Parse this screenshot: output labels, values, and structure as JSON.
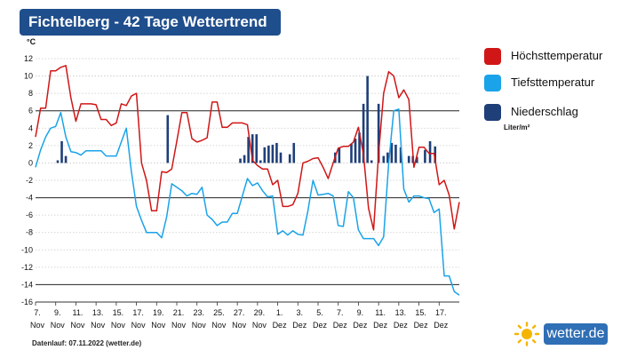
{
  "header": {
    "title": "Fichtelberg - 42 Tage Wettertrend"
  },
  "legend": {
    "items": [
      {
        "label": "Höchsttemperatur",
        "color": "#d01616"
      },
      {
        "label": "Tiefsttemperatur",
        "color": "#1aa3e8"
      },
      {
        "label": "Niederschlag",
        "color": "#1f3f78"
      }
    ],
    "precip_unit": "Liter/m²"
  },
  "footer": {
    "text": "Datenlauf: 07.11.2022 (wetter.de)"
  },
  "logo": {
    "text": "wetter.de",
    "icon": "sun-icon"
  },
  "chart_data": {
    "type": "line",
    "ylabel": "°C",
    "ylim": [
      -16,
      12
    ],
    "yticks": [
      12,
      10,
      8,
      6,
      4,
      2,
      0,
      -2,
      -4,
      -6,
      -8,
      -10,
      -12,
      -14,
      -16
    ],
    "reference_lines": [
      6,
      -4,
      -14
    ],
    "x_range_days": [
      0,
      42
    ],
    "x_tick_labels": [
      [
        "7.",
        "Nov"
      ],
      [
        "9.",
        "Nov"
      ],
      [
        "11.",
        "Nov"
      ],
      [
        "13.",
        "Nov"
      ],
      [
        "15.",
        "Nov"
      ],
      [
        "17.",
        "Nov"
      ],
      [
        "19.",
        "Nov"
      ],
      [
        "21.",
        "Nov"
      ],
      [
        "23.",
        "Nov"
      ],
      [
        "25.",
        "Nov"
      ],
      [
        "27.",
        "Nov"
      ],
      [
        "29.",
        "Nov"
      ],
      [
        "1.",
        "Dez"
      ],
      [
        "3.",
        "Dez"
      ],
      [
        "5.",
        "Dez"
      ],
      [
        "7.",
        "Dez"
      ],
      [
        "9.",
        "Dez"
      ],
      [
        "11.",
        "Dez"
      ],
      [
        "13.",
        "Dez"
      ],
      [
        "15.",
        "Dez"
      ],
      [
        "17.",
        "Dez"
      ]
    ],
    "series": [
      {
        "name": "Höchsttemperatur",
        "color": "#d01616",
        "points": [
          [
            0,
            3
          ],
          [
            0.5,
            6.3
          ],
          [
            1,
            6.3
          ],
          [
            1.5,
            10.6
          ],
          [
            2,
            10.6
          ],
          [
            2.5,
            11
          ],
          [
            3,
            11.2
          ],
          [
            3.5,
            7.5
          ],
          [
            4,
            4.8
          ],
          [
            4.5,
            6.8
          ],
          [
            5,
            6.8
          ],
          [
            5.5,
            6.8
          ],
          [
            6,
            6.7
          ],
          [
            6.5,
            5
          ],
          [
            7,
            5
          ],
          [
            7.5,
            4.3
          ],
          [
            8,
            4.6
          ],
          [
            8.5,
            6.8
          ],
          [
            9,
            6.6
          ],
          [
            9.5,
            7.7
          ],
          [
            10,
            8
          ],
          [
            10.5,
            0
          ],
          [
            11,
            -2
          ],
          [
            11.5,
            -5.5
          ],
          [
            12,
            -5.5
          ],
          [
            12.5,
            -1
          ],
          [
            13,
            -1.1
          ],
          [
            13.5,
            -0.7
          ],
          [
            14,
            2.5
          ],
          [
            14.5,
            5.8
          ],
          [
            15,
            5.8
          ],
          [
            15.5,
            2.8
          ],
          [
            16,
            2.4
          ],
          [
            16.5,
            2.6
          ],
          [
            17,
            2.9
          ],
          [
            17.5,
            7
          ],
          [
            18,
            7
          ],
          [
            18.5,
            4.1
          ],
          [
            19,
            4.1
          ],
          [
            19.5,
            4.6
          ],
          [
            20,
            4.6
          ],
          [
            20.5,
            4.6
          ],
          [
            21,
            4.4
          ],
          [
            21.5,
            0.3
          ],
          [
            22,
            -0.3
          ],
          [
            22.5,
            -0.7
          ],
          [
            23,
            -0.7
          ],
          [
            23.5,
            -2.5
          ],
          [
            24,
            -2
          ],
          [
            24.5,
            -5
          ],
          [
            25,
            -5
          ],
          [
            25.5,
            -4.8
          ],
          [
            26,
            -3.5
          ],
          [
            26.5,
            0
          ],
          [
            27,
            0.2
          ],
          [
            27.5,
            0.5
          ],
          [
            28,
            0.6
          ],
          [
            28.5,
            -0.5
          ],
          [
            29,
            -1.8
          ],
          [
            29.5,
            0
          ],
          [
            30,
            1.7
          ],
          [
            30.5,
            1.9
          ],
          [
            31,
            1.9
          ],
          [
            31.5,
            2.4
          ],
          [
            32,
            4.1
          ],
          [
            32.5,
            1
          ],
          [
            33,
            -5.2
          ],
          [
            33.5,
            -7.7
          ],
          [
            34,
            1
          ],
          [
            34.5,
            8
          ],
          [
            35,
            10.5
          ],
          [
            35.5,
            10
          ],
          [
            36,
            7.5
          ],
          [
            36.5,
            8.4
          ],
          [
            37,
            7.3
          ],
          [
            37.5,
            -0.5
          ],
          [
            38,
            1.8
          ],
          [
            38.5,
            1.8
          ],
          [
            39,
            1.1
          ],
          [
            39.5,
            1.1
          ],
          [
            40,
            -2.5
          ],
          [
            40.5,
            -2
          ],
          [
            41,
            -3.7
          ],
          [
            41.5,
            -7.6
          ],
          [
            42,
            -4.5
          ]
        ]
      },
      {
        "name": "Tiefsttemperatur",
        "color": "#1aa3e8",
        "points": [
          [
            0,
            -0.5
          ],
          [
            0.5,
            1.5
          ],
          [
            1,
            3
          ],
          [
            1.5,
            4
          ],
          [
            2,
            4.2
          ],
          [
            2.5,
            5.8
          ],
          [
            3,
            3
          ],
          [
            3.5,
            1.3
          ],
          [
            4,
            1.2
          ],
          [
            4.5,
            0.9
          ],
          [
            5,
            1.4
          ],
          [
            5.5,
            1.4
          ],
          [
            6,
            1.4
          ],
          [
            6.5,
            1.4
          ],
          [
            7,
            0.8
          ],
          [
            7.5,
            0.8
          ],
          [
            8,
            0.8
          ],
          [
            8.5,
            2.4
          ],
          [
            9,
            4
          ],
          [
            9.5,
            -1
          ],
          [
            10,
            -5
          ],
          [
            10.5,
            -6.6
          ],
          [
            11,
            -8
          ],
          [
            11.5,
            -8
          ],
          [
            12,
            -8
          ],
          [
            12.5,
            -8.6
          ],
          [
            13,
            -6.2
          ],
          [
            13.5,
            -2.4
          ],
          [
            14,
            -2.8
          ],
          [
            14.5,
            -3.2
          ],
          [
            15,
            -3.8
          ],
          [
            15.5,
            -3.5
          ],
          [
            16,
            -3.6
          ],
          [
            16.5,
            -2.8
          ],
          [
            17,
            -6
          ],
          [
            17.5,
            -6.5
          ],
          [
            18,
            -7.2
          ],
          [
            18.5,
            -6.8
          ],
          [
            19,
            -6.8
          ],
          [
            19.5,
            -5.8
          ],
          [
            20,
            -5.8
          ],
          [
            20.5,
            -3.8
          ],
          [
            21,
            -1.8
          ],
          [
            21.5,
            -2.6
          ],
          [
            22,
            -2.3
          ],
          [
            22.5,
            -3.2
          ],
          [
            23,
            -3.9
          ],
          [
            23.5,
            -3.8
          ],
          [
            24,
            -8.2
          ],
          [
            24.5,
            -7.8
          ],
          [
            25,
            -8.3
          ],
          [
            25.5,
            -7.8
          ],
          [
            26,
            -8.2
          ],
          [
            26.5,
            -8.3
          ],
          [
            27,
            -5.5
          ],
          [
            27.5,
            -2
          ],
          [
            28,
            -3.7
          ],
          [
            28.5,
            -3.6
          ],
          [
            29,
            -3.5
          ],
          [
            29.5,
            -3.8
          ],
          [
            30,
            -7.2
          ],
          [
            30.5,
            -7.3
          ],
          [
            31,
            -3.3
          ],
          [
            31.5,
            -4
          ],
          [
            32,
            -7.7
          ],
          [
            32.5,
            -8.7
          ],
          [
            33,
            -8.7
          ],
          [
            33.5,
            -8.7
          ],
          [
            34,
            -9.5
          ],
          [
            34.5,
            -8.5
          ],
          [
            35,
            0
          ],
          [
            35.5,
            6
          ],
          [
            36,
            6.2
          ],
          [
            36.5,
            -3
          ],
          [
            37,
            -4.5
          ],
          [
            37.5,
            -3.8
          ],
          [
            38,
            -3.8
          ],
          [
            38.5,
            -4
          ],
          [
            39,
            -4.1
          ],
          [
            39.5,
            -5.7
          ],
          [
            40,
            -5.3
          ],
          [
            40.5,
            -13
          ],
          [
            41,
            -13
          ],
          [
            41.5,
            -14.8
          ],
          [
            42,
            -15.2
          ]
        ]
      },
      {
        "name": "Niederschlag",
        "color": "#1f3f78",
        "type": "bar",
        "bars": [
          [
            2.2,
            0.3
          ],
          [
            2.6,
            2.5
          ],
          [
            3.0,
            0.8
          ],
          [
            13.1,
            5.5
          ],
          [
            20.3,
            0.5
          ],
          [
            20.7,
            0.9
          ],
          [
            21.1,
            3
          ],
          [
            21.5,
            3.3
          ],
          [
            21.9,
            3.3
          ],
          [
            22.3,
            0.3
          ],
          [
            22.7,
            1.8
          ],
          [
            23.1,
            2
          ],
          [
            23.5,
            2.1
          ],
          [
            23.9,
            2.3
          ],
          [
            24.3,
            1.2
          ],
          [
            25.2,
            1
          ],
          [
            25.6,
            2.3
          ],
          [
            29.7,
            1.2
          ],
          [
            30.1,
            1.7
          ],
          [
            31.3,
            2.2
          ],
          [
            31.7,
            2.8
          ],
          [
            32.1,
            3.5
          ],
          [
            32.5,
            6.8
          ],
          [
            32.9,
            10
          ],
          [
            33.3,
            0.3
          ],
          [
            34.0,
            6.8
          ],
          [
            34.5,
            0.8
          ],
          [
            34.9,
            1.2
          ],
          [
            35.3,
            2.3
          ],
          [
            35.7,
            2.1
          ],
          [
            36.2,
            1.8
          ],
          [
            37.0,
            0.8
          ],
          [
            37.4,
            0.8
          ],
          [
            37.8,
            0.7
          ],
          [
            38.6,
            1.5
          ],
          [
            39.1,
            2.5
          ],
          [
            39.6,
            1.9
          ]
        ]
      }
    ]
  }
}
